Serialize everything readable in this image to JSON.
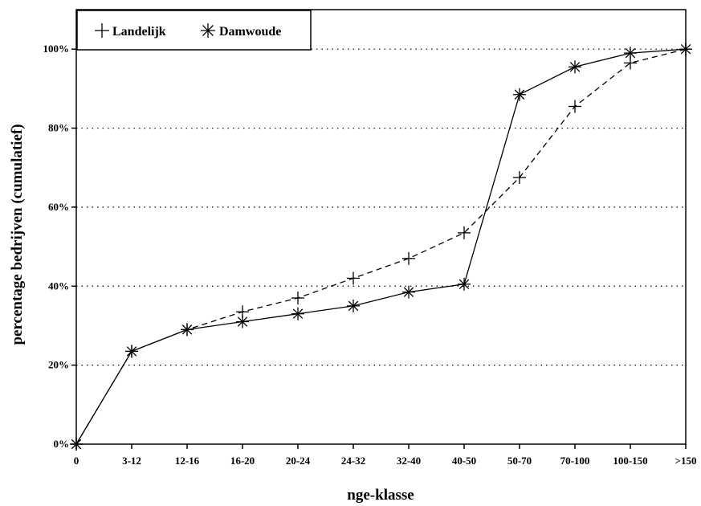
{
  "chart_data": {
    "type": "line",
    "title": "",
    "xlabel": "nge-klasse",
    "ylabel": "percentage bedrijven (cumulatief)",
    "categories": [
      "0",
      "3-12",
      "12-16",
      "16-20",
      "20-24",
      "24-32",
      "32-40",
      "40-50",
      "50-70",
      "70-100",
      "100-150",
      ">150"
    ],
    "ylim": [
      0,
      110
    ],
    "yticks": [
      0,
      20,
      40,
      60,
      80,
      100
    ],
    "ytick_labels": [
      "0%",
      "20%",
      "40%",
      "60%",
      "80%",
      "100%"
    ],
    "grid": "horizontal dotted",
    "legend_position": "top-left",
    "series": [
      {
        "name": "Landelijk",
        "marker": "plus",
        "line_style": "dashed",
        "values": [
          0,
          23.5,
          29,
          33.5,
          37,
          42,
          47,
          53.5,
          67.5,
          85.5,
          96.5,
          100
        ]
      },
      {
        "name": "Damwoude",
        "marker": "asterisk",
        "line_style": "solid",
        "values": [
          0,
          23.5,
          29,
          31,
          33,
          35,
          38.5,
          40.5,
          88.5,
          95.5,
          99,
          100
        ]
      }
    ]
  }
}
